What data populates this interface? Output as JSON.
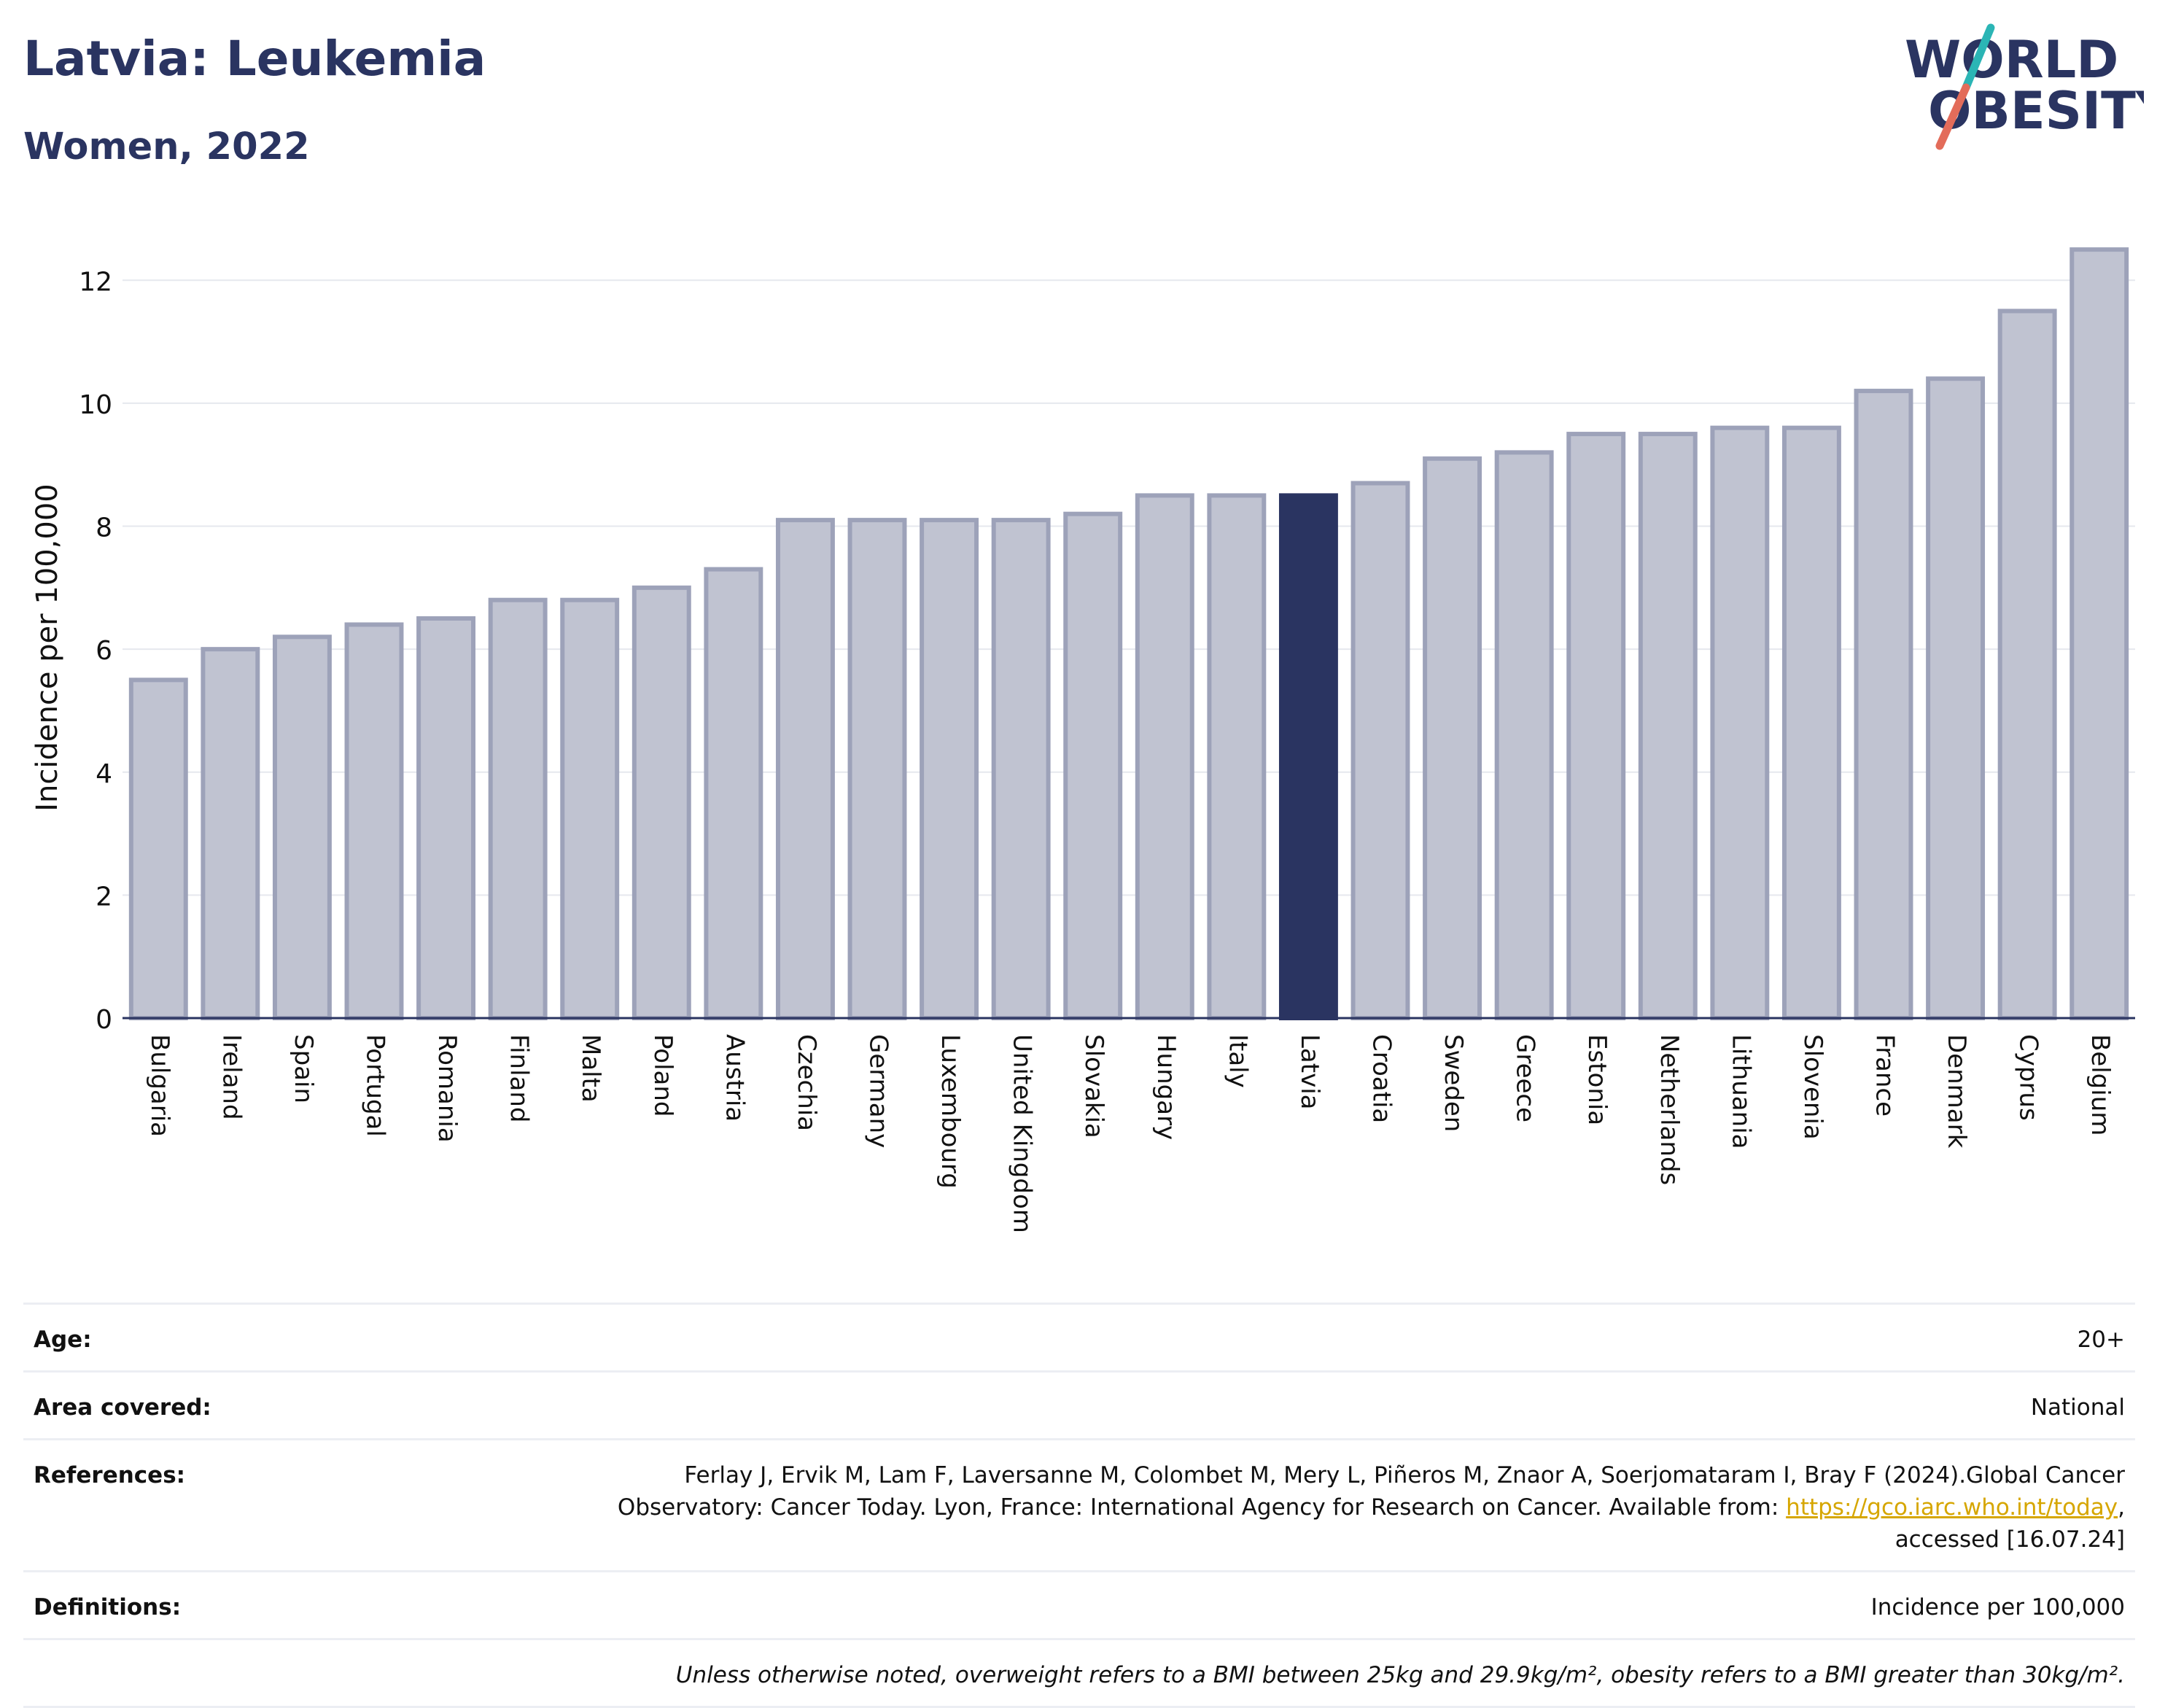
{
  "header": {
    "title": "Latvia: Leukemia",
    "subtitle": "Women, 2022"
  },
  "logo": {
    "line1": "WORLD",
    "line2": "OBESITY",
    "colors": {
      "text": "#2a3461",
      "slash_top": "#2bb5b5",
      "slash_bottom": "#e36c5a"
    }
  },
  "chart_data": {
    "type": "bar",
    "title": "Latvia: Leukemia",
    "subtitle": "Women, 2022",
    "xlabel": "",
    "ylabel": "Incidence per 100,000",
    "ylim": [
      0,
      13
    ],
    "yticks": [
      0,
      2,
      4,
      6,
      8,
      10,
      12
    ],
    "grid": true,
    "legend": "none",
    "highlight": "Latvia",
    "categories": [
      "Bulgaria",
      "Ireland",
      "Spain",
      "Portugal",
      "Romania",
      "Finland",
      "Malta",
      "Poland",
      "Austria",
      "Czechia",
      "Germany",
      "Luxembourg",
      "United Kingdom",
      "Slovakia",
      "Hungary",
      "Italy",
      "Latvia",
      "Croatia",
      "Sweden",
      "Greece",
      "Estonia",
      "Netherlands",
      "Lithuania",
      "Slovenia",
      "France",
      "Denmark",
      "Cyprus",
      "Belgium"
    ],
    "values": [
      5.5,
      6.0,
      6.2,
      6.4,
      6.5,
      6.8,
      6.8,
      7.0,
      7.3,
      8.1,
      8.1,
      8.1,
      8.1,
      8.2,
      8.5,
      8.5,
      8.5,
      8.7,
      9.1,
      9.2,
      9.5,
      9.5,
      9.6,
      9.6,
      10.2,
      10.4,
      11.5,
      12.5
    ],
    "colors": {
      "bar": "#c0c3d1",
      "bar_edge": "#9da2b9",
      "highlight": "#2a3461",
      "grid": "#e6e8ee",
      "axis": "#2a3461"
    }
  },
  "meta": {
    "age_label": "Age:",
    "age_value": "20+",
    "area_label": "Area covered:",
    "area_value": "National",
    "references_label": "References:",
    "references_text": "Ferlay J, Ervik M, Lam F, Laversanne M, Colombet M, Mery L, Piñeros M, Znaor A, Soerjomataram I, Bray F (2024).Global Cancer Observatory: Cancer Today. Lyon, France: International Agency for Research on Cancer. Available from:",
    "references_link": "https://gco.iarc.who.int/today",
    "references_tail": ", accessed [16.07.24]",
    "definitions_label": "Definitions:",
    "definitions_value": "Incidence per 100,000",
    "note": "Unless otherwise noted, overweight refers to a BMI between 25kg and 29.9kg/m², obesity refers to a BMI greater than 30kg/m²."
  }
}
